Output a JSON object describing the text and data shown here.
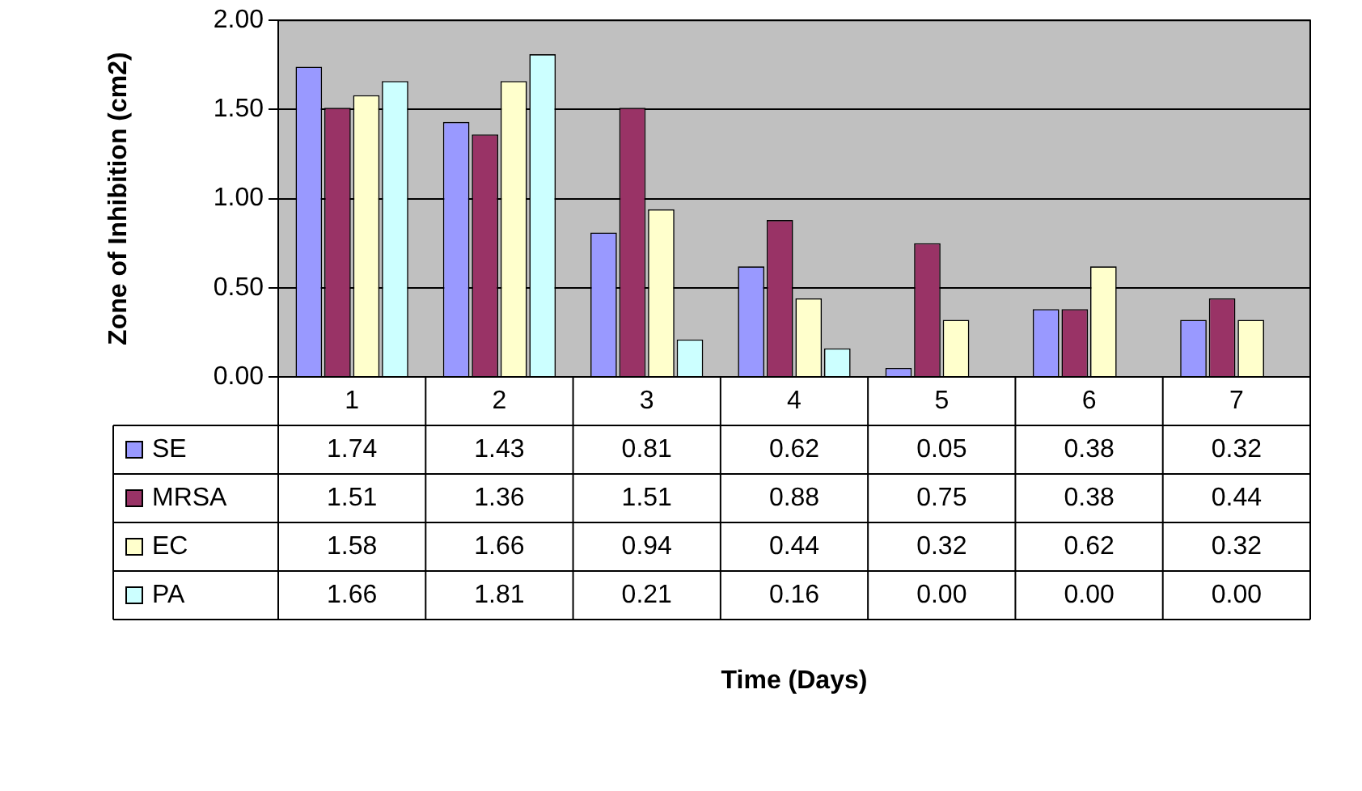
{
  "chart_data": {
    "type": "bar",
    "annotations": [
      "Time (Days)"
    ],
    "ylabel": "Zone of Inhibition (cm2)",
    "categories": [
      "1",
      "2",
      "3",
      "4",
      "5",
      "6",
      "7"
    ],
    "series": [
      {
        "name": "SE",
        "color": "#9999ff",
        "values": [
          1.74,
          1.43,
          0.81,
          0.62,
          0.05,
          0.38,
          0.32
        ],
        "value_labels": [
          "1.74",
          "1.43",
          "0.81",
          "0.62",
          "0.05",
          "0.38",
          "0.32"
        ]
      },
      {
        "name": "MRSA",
        "color": "#993366",
        "values": [
          1.51,
          1.36,
          1.51,
          0.88,
          0.75,
          0.38,
          0.44
        ],
        "value_labels": [
          "1.51",
          "1.36",
          "1.51",
          "0.88",
          "0.75",
          "0.38",
          "0.44"
        ]
      },
      {
        "name": "EC",
        "color": "#ffffcc",
        "values": [
          1.58,
          1.66,
          0.94,
          0.44,
          0.32,
          0.62,
          0.32
        ],
        "value_labels": [
          "1.58",
          "1.66",
          "0.94",
          "0.44",
          "0.32",
          "0.62",
          "0.32"
        ]
      },
      {
        "name": "PA",
        "color": "#ccffff",
        "values": [
          1.66,
          1.81,
          0.21,
          0.16,
          0.0,
          0.0,
          0.0
        ],
        "value_labels": [
          "1.66",
          "1.81",
          "0.21",
          "0.16",
          "0.00",
          "0.00",
          "0.00"
        ]
      }
    ],
    "ylim": [
      0,
      2
    ],
    "yticks": [
      {
        "value": 0,
        "label": "0.00"
      },
      {
        "value": 0.5,
        "label": "0.50"
      },
      {
        "value": 1,
        "label": "1.00"
      },
      {
        "value": 1.5,
        "label": "1.50"
      },
      {
        "value": 2,
        "label": "2.00"
      }
    ],
    "grid": "y",
    "legend": "bottom left"
  }
}
